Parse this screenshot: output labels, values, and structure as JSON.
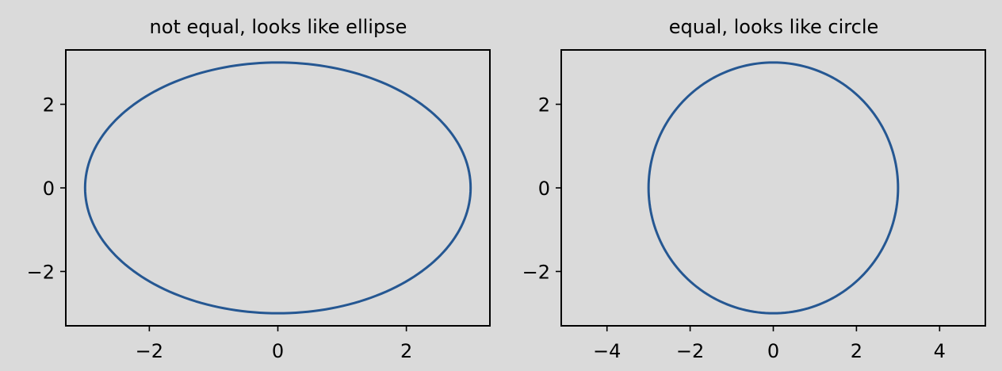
{
  "colors": {
    "background": "#dadada",
    "line": "#255792",
    "axes": "#000000"
  },
  "chart_data": [
    {
      "type": "line",
      "title": "not equal, looks like ellipse",
      "shape": "circle of radius 3 centered at origin (aspect not equal)",
      "aspect": "auto",
      "xlim": [
        -3.3,
        3.3
      ],
      "ylim": [
        -3.3,
        3.3
      ],
      "xticks": [
        -2,
        0,
        2
      ],
      "yticks": [
        -2,
        0,
        2
      ],
      "xtick_labels": [
        "−2",
        "0",
        "2"
      ],
      "ytick_labels": [
        "−2",
        "0",
        "2"
      ],
      "grid": false,
      "series": [
        {
          "center": [
            0,
            0
          ],
          "radius": 3
        }
      ]
    },
    {
      "type": "line",
      "title": "equal, looks like circle",
      "shape": "circle of radius 3 centered at origin (aspect equal)",
      "aspect": "equal",
      "xlim": [
        -5.1,
        5.1
      ],
      "ylim": [
        -3.3,
        3.3
      ],
      "xticks": [
        -4,
        -2,
        0,
        2,
        4
      ],
      "yticks": [
        -2,
        0,
        2
      ],
      "xtick_labels": [
        "−4",
        "−2",
        "0",
        "2",
        "4"
      ],
      "ytick_labels": [
        "−2",
        "0",
        "2"
      ],
      "grid": false,
      "series": [
        {
          "center": [
            0,
            0
          ],
          "radius": 3
        }
      ]
    }
  ]
}
